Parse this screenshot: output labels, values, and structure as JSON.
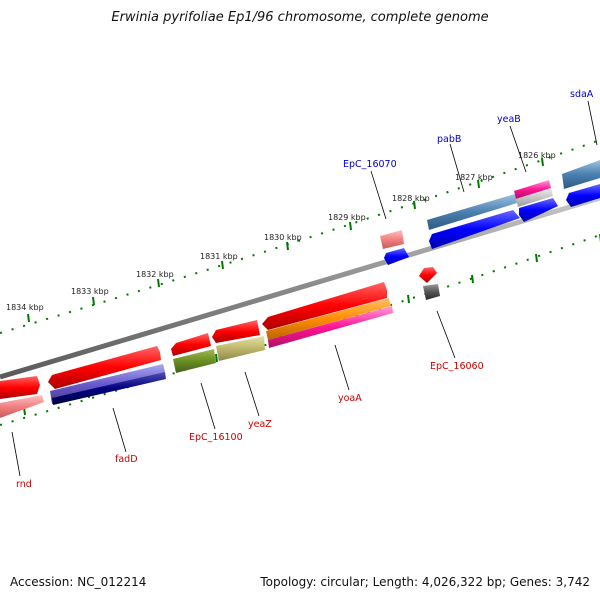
{
  "title": "Erwinia pyrifoliae Ep1/96 chromosome, complete genome",
  "footer": {
    "accession": "Accession: NC_012214",
    "summary": "Topology: circular; Length: 4,026,322 bp; Genes: 3,742"
  },
  "ticks": [
    "1826 kbp",
    "1827 kbp",
    "1828 kbp",
    "1829 kbp",
    "1830 kbp",
    "1831 kbp",
    "1832 kbp",
    "1833 kbp",
    "1834 kbp"
  ],
  "labels_top": [
    "sdaA",
    "yeaB",
    "pabB",
    "EpC_16070"
  ],
  "labels_bottom": [
    "EpC_16060",
    "yoaA",
    "yeaZ",
    "EpC_16100",
    "fadD",
    "rnd"
  ],
  "colors": {
    "label_top": "#0000cc",
    "label_bottom": "#cc0000",
    "backbone": "#888888",
    "ticks": "#007700"
  }
}
